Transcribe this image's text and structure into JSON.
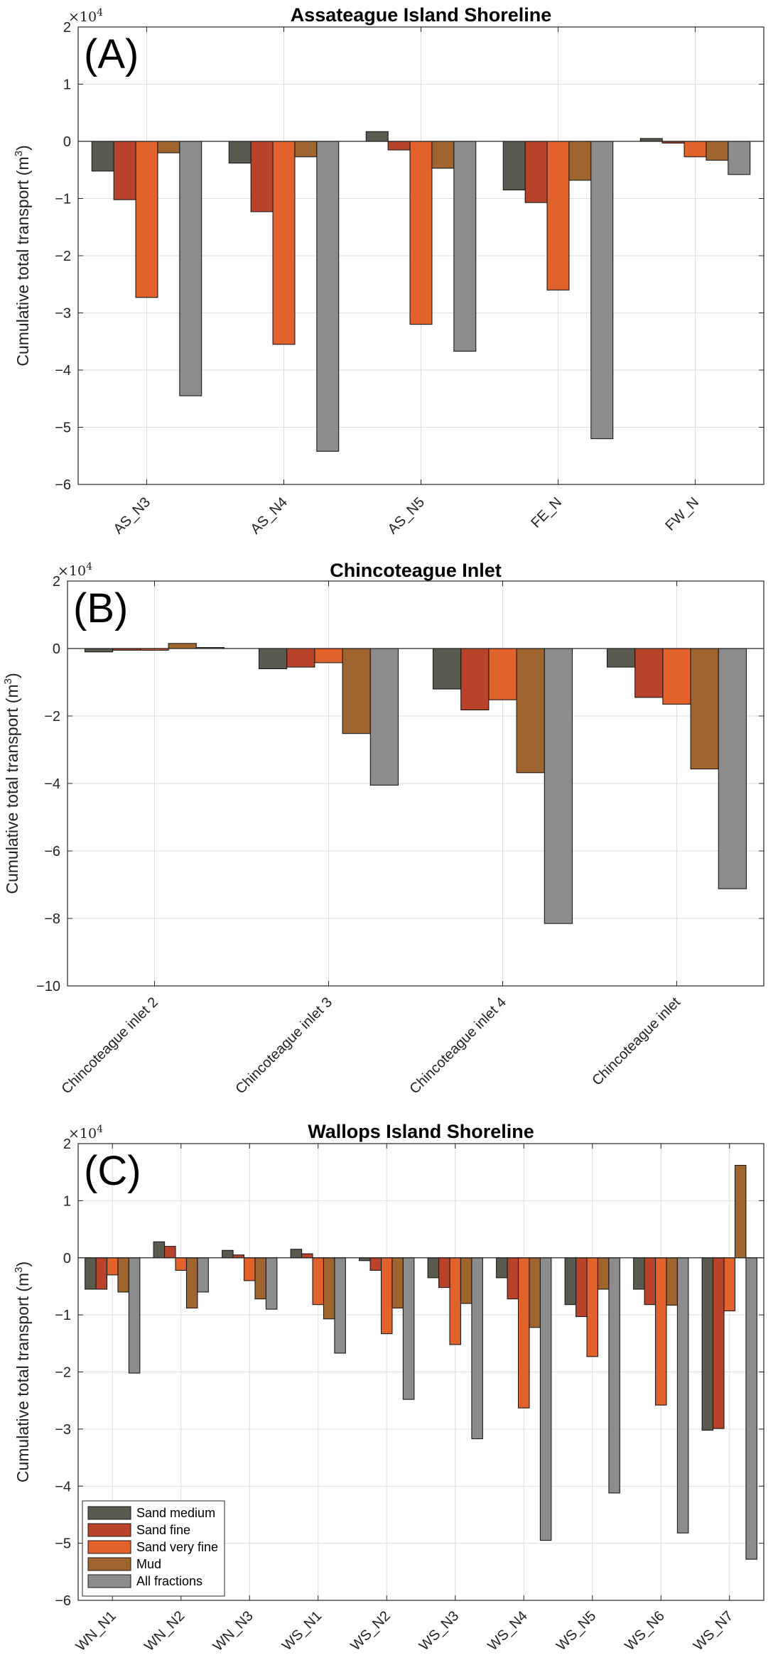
{
  "figure": {
    "colors": {
      "Sand medium": "#5a5a4e",
      "Sand fine": "#b9432a",
      "Sand very fine": "#e2622c",
      "Mud": "#a0652f",
      "All fractions": "#8c8c8c"
    }
  },
  "chart_data": [
    {
      "type": "bar",
      "panel_label": "(A)",
      "title": "Assateague Island Shoreline",
      "ylabel": "Cumulative total transport (m3)",
      "ylabel_unit_base": "Cumulative total transport (m",
      "ylabel_sup": "3",
      "ylabel_tail": ")",
      "y_multiplier": "×10",
      "y_multiplier_exp": "4",
      "ylim": [
        -6,
        2
      ],
      "yticks": [
        -6,
        -5,
        -4,
        -3,
        -2,
        -1,
        0,
        1,
        2
      ],
      "ytick_labels": [
        "−6",
        "−5",
        "−4",
        "−3",
        "−2",
        "−1",
        "0",
        "1",
        "2"
      ],
      "grid": true,
      "categories": [
        "AS_N3",
        "AS_N4",
        "AS_N5",
        "FE_N",
        "FW_N"
      ],
      "series": [
        {
          "name": "Sand medium",
          "values": [
            -0.52,
            -0.38,
            0.17,
            -0.85,
            0.05
          ]
        },
        {
          "name": "Sand fine",
          "values": [
            -1.02,
            -1.23,
            -0.15,
            -1.07,
            -0.03
          ]
        },
        {
          "name": "Sand very fine",
          "values": [
            -2.73,
            -3.55,
            -3.2,
            -2.6,
            -0.27
          ]
        },
        {
          "name": "Mud",
          "values": [
            -0.2,
            -0.27,
            -0.47,
            -0.68,
            -0.33
          ]
        },
        {
          "name": "All fractions",
          "values": [
            -4.45,
            -5.42,
            -3.67,
            -5.2,
            -0.58
          ]
        }
      ]
    },
    {
      "type": "bar",
      "panel_label": "(B)",
      "title": "Chincoteague Inlet",
      "ylabel": "Cumulative total transport (m3)",
      "ylabel_unit_base": "Cumulative total transport (m",
      "ylabel_sup": "3",
      "ylabel_tail": ")",
      "y_multiplier": "×10",
      "y_multiplier_exp": "4",
      "ylim": [
        -10,
        2
      ],
      "yticks": [
        -10,
        -8,
        -6,
        -4,
        -2,
        0,
        2
      ],
      "ytick_labels": [
        "−10",
        "−8",
        "−6",
        "−4",
        "−2",
        "0",
        "2"
      ],
      "grid": true,
      "categories": [
        "Chincoteague inlet 2",
        "Chincoteague inlet 3",
        "Chincoteague inlet 4",
        "Chincoteague inlet"
      ],
      "series": [
        {
          "name": "Sand medium",
          "values": [
            -0.1,
            -0.6,
            -1.2,
            -0.55
          ]
        },
        {
          "name": "Sand fine",
          "values": [
            -0.05,
            -0.55,
            -1.82,
            -1.45
          ]
        },
        {
          "name": "Sand very fine",
          "values": [
            -0.05,
            -0.42,
            -1.52,
            -1.65
          ]
        },
        {
          "name": "Mud",
          "values": [
            0.15,
            -2.52,
            -3.68,
            -3.57
          ]
        },
        {
          "name": "All fractions",
          "values": [
            0.03,
            -4.05,
            -8.15,
            -7.12
          ]
        }
      ]
    },
    {
      "type": "bar",
      "panel_label": "(C)",
      "title": "Wallops Island Shoreline",
      "ylabel": "Cumulative total transport (m3)",
      "ylabel_unit_base": "Cumulative total transport (m",
      "ylabel_sup": "3",
      "ylabel_tail": ")",
      "y_multiplier": "×10",
      "y_multiplier_exp": "4",
      "ylim": [
        -6,
        2
      ],
      "yticks": [
        -6,
        -5,
        -4,
        -3,
        -2,
        -1,
        0,
        1,
        2
      ],
      "ytick_labels": [
        "−6",
        "−5",
        "−4",
        "−3",
        "−2",
        "−1",
        "0",
        "1",
        "2"
      ],
      "grid": true,
      "legend": "bottom-left",
      "categories": [
        "WN_N1",
        "WN_N2",
        "WN_N3",
        "WS_N1",
        "WS_N2",
        "WS_N3",
        "WS_N4",
        "WS_N5",
        "WS_N6",
        "WS_N7"
      ],
      "series": [
        {
          "name": "Sand medium",
          "values": [
            -0.55,
            0.28,
            0.13,
            0.15,
            -0.05,
            -0.35,
            -0.35,
            -0.82,
            -0.55,
            -3.02
          ]
        },
        {
          "name": "Sand fine",
          "values": [
            -0.55,
            0.2,
            0.05,
            0.07,
            -0.22,
            -0.52,
            -0.72,
            -1.03,
            -0.82,
            -2.99
          ]
        },
        {
          "name": "Sand very fine",
          "values": [
            -0.3,
            -0.22,
            -0.4,
            -0.82,
            -1.33,
            -1.52,
            -2.63,
            -1.73,
            -2.58,
            -0.93
          ]
        },
        {
          "name": "Mud",
          "values": [
            -0.6,
            -0.88,
            -0.72,
            -1.07,
            -0.88,
            -0.8,
            -1.22,
            -0.55,
            -0.83,
            1.62
          ]
        },
        {
          "name": "All fractions",
          "values": [
            -2.02,
            -0.6,
            -0.9,
            -1.67,
            -2.48,
            -3.17,
            -4.95,
            -4.12,
            -4.82,
            -5.28
          ]
        }
      ]
    }
  ]
}
